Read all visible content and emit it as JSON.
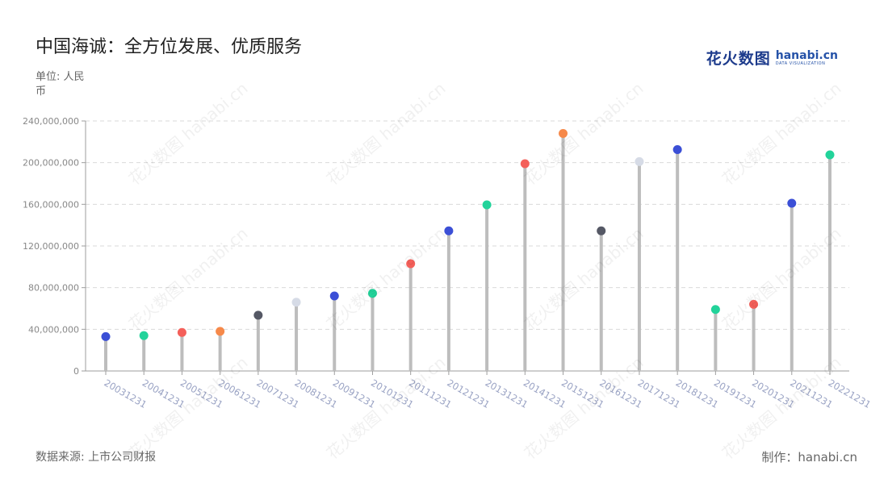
{
  "title": "中国海诚：全方位发展、优质服务",
  "unit_label": "单位: 人民币",
  "source_label": "数据来源: 上市公司财报",
  "credit_label": "制作：hanabi.cn",
  "logo": {
    "cn": "花火数图",
    "en": "hanabi.cn",
    "en_sub": "DATA VISUALIZATION"
  },
  "watermark_text": "花火数图 hanabi.cn",
  "chart_data": {
    "type": "lollipop",
    "title": "中国海诚：全方位发展、优质服务",
    "xlabel": "",
    "ylabel": "单位: 人民币",
    "ylim": [
      0,
      240000000
    ],
    "yticks": [
      0,
      40000000,
      80000000,
      120000000,
      160000000,
      200000000,
      240000000
    ],
    "ytick_labels": [
      "0",
      "40,000,000",
      "80,000,000",
      "120,000,000",
      "160,000,000",
      "200,000,000",
      "240,000,000"
    ],
    "grid": true,
    "categories": [
      "20031231",
      "20041231",
      "20051231",
      "20061231",
      "20071231",
      "20081231",
      "20091231",
      "20101231",
      "20111231",
      "20121231",
      "20131231",
      "20141231",
      "20151231",
      "20161231",
      "20171231",
      "20181231",
      "20191231",
      "20201231",
      "20211231",
      "20221231"
    ],
    "values": [
      33000000,
      34000000,
      37000000,
      38000000,
      53500000,
      66000000,
      72000000,
      74500000,
      103000000,
      134500000,
      159500000,
      199000000,
      228000000,
      134500000,
      201000000,
      212500000,
      59000000,
      64000000,
      161000000,
      207500000
    ],
    "dot_colors": [
      "#3b4fd6",
      "#22d39a",
      "#f4605a",
      "#f6894a",
      "#555865",
      "#d6dbe6",
      "#3b4fd6",
      "#22d39a",
      "#f4605a",
      "#3b4fd6",
      "#22d39a",
      "#f4605a",
      "#f6894a",
      "#555865",
      "#d6dbe6",
      "#3b4fd6",
      "#22d39a",
      "#f4605a",
      "#3b4fd6",
      "#22d39a"
    ],
    "stem_color": "#bdbdbd",
    "grid_color": "#d9d9d9",
    "axis_color": "#9e9e9e",
    "tick_label_color": "#888888",
    "x_label_color": "#9aa3c4"
  }
}
